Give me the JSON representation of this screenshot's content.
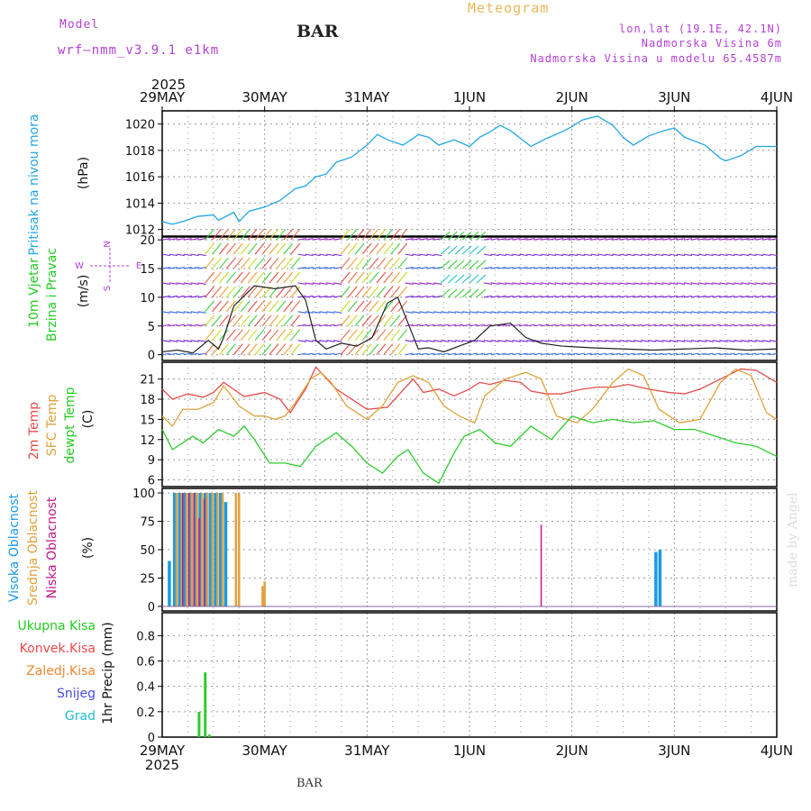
{
  "header": {
    "model_label": "Model",
    "model_name": "wrf—nmm_v3.9.1  e1km",
    "station": "BAR",
    "title": "Meteogram",
    "coords": "lon,lat (19.1E, 42.1N)",
    "elevation": "Nadmorska Visina 6m",
    "model_elevation": "Nadmorska Visina u modelu 65.4587m",
    "watermark": "made by Angel",
    "footer_station": "BAR"
  },
  "colors": {
    "pressure": "#1fa7e6",
    "temp2m": "#e84a4a",
    "sfc": "#e0a23a",
    "dew": "#2ecc2e",
    "high_cloud": "#1a9ae6",
    "mid_cloud": "#e3a13c",
    "low_cloud": "#c4168a",
    "precip_total": "#2ecc2e",
    "grid": "#9a9a9a",
    "header_purple": "#b341d6",
    "title_orange": "#e8b85a"
  },
  "chart_data": [
    {
      "type": "line",
      "panel": "pressure",
      "ylabel": "(hPa)",
      "side_label": "Pritisak na nivou mora",
      "ylim": [
        1011.5,
        1021
      ],
      "yticks": [
        1012,
        1014,
        1016,
        1018,
        1020
      ],
      "x_top_year": "2025",
      "x_date_labels": [
        "29MAY",
        "30MAY",
        "31MAY",
        "1JUN",
        "2JUN",
        "3JUN",
        "4JUN"
      ],
      "x_bottom_year": "2025",
      "series": [
        {
          "x": [
            0,
            0.1,
            0.2,
            0.35,
            0.5,
            0.55,
            0.7,
            0.75,
            0.85,
            1.0,
            1.15,
            1.3,
            1.4,
            1.5,
            1.6,
            1.7,
            1.85,
            2.0,
            2.1,
            2.2,
            2.35,
            2.45,
            2.5,
            2.6,
            2.7,
            2.85,
            3.0,
            3.1,
            3.2,
            3.3,
            3.4,
            3.5,
            3.6,
            3.75,
            3.9,
            4.0,
            4.1,
            4.25,
            4.4,
            4.5,
            4.6,
            4.75,
            4.9,
            5.0,
            5.1,
            5.3,
            5.45,
            5.5,
            5.65,
            5.8,
            5.95,
            6.0
          ],
          "values": [
            1012.6,
            1012.4,
            1012.6,
            1013.0,
            1013.1,
            1012.7,
            1013.3,
            1012.6,
            1013.4,
            1013.7,
            1014.2,
            1015.1,
            1015.3,
            1016.0,
            1016.2,
            1017.1,
            1017.5,
            1018.4,
            1019.2,
            1018.8,
            1018.4,
            1018.9,
            1019.2,
            1019.0,
            1018.4,
            1018.8,
            1018.3,
            1019.0,
            1019.4,
            1019.9,
            1019.5,
            1018.9,
            1018.3,
            1018.9,
            1019.4,
            1019.8,
            1020.3,
            1020.6,
            1019.9,
            1019.0,
            1018.4,
            1019.1,
            1019.5,
            1019.7,
            1019.0,
            1018.4,
            1017.4,
            1017.2,
            1017.6,
            1018.3,
            1018.3,
            1018.3
          ]
        }
      ]
    },
    {
      "type": "line",
      "panel": "wind",
      "ylabel": "(m/s)",
      "side_label_1": "10m Vjetar",
      "side_label_2": "Brzina i Pravac",
      "compass_n": "N",
      "compass_s": "S",
      "compass_w": "W",
      "compass_e": "E",
      "ylim": [
        -1,
        20.5
      ],
      "yticks": [
        0,
        5,
        10,
        15,
        20
      ],
      "series": [
        {
          "name": "speed",
          "x": [
            0,
            0.15,
            0.3,
            0.45,
            0.55,
            0.6,
            0.7,
            0.9,
            1.1,
            1.3,
            1.4,
            1.5,
            1.6,
            1.75,
            1.9,
            2.05,
            2.2,
            2.3,
            2.4,
            2.5,
            2.6,
            2.75,
            2.9,
            3.05,
            3.2,
            3.4,
            3.55,
            3.7,
            3.9,
            4.2,
            4.5,
            4.8,
            5.1,
            5.4,
            5.7,
            6.0
          ],
          "values": [
            0.5,
            0.8,
            0.3,
            2.5,
            1.0,
            3.0,
            8.5,
            12.0,
            11.5,
            12.0,
            9.5,
            2.5,
            1.0,
            2.0,
            1.5,
            3.0,
            9.0,
            10.0,
            5.5,
            1.0,
            1.2,
            0.5,
            1.5,
            2.5,
            5.0,
            5.5,
            3.0,
            2.0,
            1.5,
            1.2,
            1.0,
            0.8,
            1.0,
            1.2,
            0.8,
            1.0
          ]
        }
      ]
    },
    {
      "type": "line",
      "panel": "temperature",
      "ylabel": "(C)",
      "side_label_1": "2m Temp",
      "side_label_2": "SFC Temp",
      "side_label_3": "dewpt Temp",
      "ylim": [
        5,
        23.5
      ],
      "yticks": [
        6,
        9,
        12,
        15,
        18,
        21
      ],
      "series": [
        {
          "name": "2m Temp",
          "x": [
            0,
            0.1,
            0.25,
            0.4,
            0.5,
            0.6,
            0.8,
            1.0,
            1.15,
            1.25,
            1.4,
            1.5,
            1.7,
            1.8,
            2.0,
            2.2,
            2.3,
            2.45,
            2.55,
            2.7,
            2.85,
            3.0,
            3.1,
            3.2,
            3.35,
            3.5,
            3.6,
            3.75,
            3.9,
            4.1,
            4.25,
            4.4,
            4.55,
            4.75,
            4.95,
            5.1,
            5.25,
            5.45,
            5.65,
            5.8,
            6.0
          ],
          "values": [
            19.5,
            18.0,
            18.8,
            18.3,
            19.0,
            20.5,
            18.4,
            19.0,
            18.0,
            16.0,
            19.5,
            22.8,
            19.5,
            18.5,
            16.5,
            16.8,
            18.5,
            21.0,
            19.0,
            19.5,
            18.5,
            19.5,
            20.5,
            20.2,
            20.8,
            20.5,
            19.2,
            18.8,
            18.8,
            19.5,
            19.8,
            19.8,
            20.2,
            19.5,
            19.0,
            18.8,
            19.5,
            21.0,
            22.5,
            22.3,
            20.5
          ]
        },
        {
          "name": "SFC Temp",
          "x": [
            0,
            0.1,
            0.2,
            0.35,
            0.5,
            0.6,
            0.75,
            0.9,
            1.0,
            1.1,
            1.2,
            1.3,
            1.45,
            1.55,
            1.65,
            1.8,
            2.0,
            2.15,
            2.3,
            2.45,
            2.6,
            2.75,
            2.9,
            3.05,
            3.15,
            3.35,
            3.55,
            3.7,
            3.85,
            4.05,
            4.2,
            4.4,
            4.55,
            4.7,
            4.85,
            5.05,
            5.25,
            5.45,
            5.6,
            5.75,
            5.9,
            6.0
          ],
          "values": [
            15.5,
            14.0,
            16.5,
            16.5,
            17.5,
            20.0,
            17.0,
            15.5,
            15.5,
            15.0,
            15.5,
            17.5,
            21.0,
            22.0,
            20.5,
            17.0,
            15.0,
            17.0,
            20.5,
            21.5,
            20.5,
            17.0,
            15.5,
            14.5,
            18.5,
            21.0,
            22.0,
            21.0,
            15.5,
            14.5,
            16.5,
            20.5,
            22.5,
            21.5,
            16.5,
            14.5,
            15.0,
            20.5,
            22.5,
            21.5,
            16.0,
            15.0
          ]
        },
        {
          "name": "dewpt Temp",
          "x": [
            0,
            0.1,
            0.3,
            0.4,
            0.55,
            0.7,
            0.8,
            0.9,
            1.05,
            1.2,
            1.35,
            1.5,
            1.7,
            1.85,
            2.0,
            2.15,
            2.3,
            2.4,
            2.55,
            2.7,
            2.85,
            2.95,
            3.1,
            3.25,
            3.4,
            3.6,
            3.8,
            4.0,
            4.2,
            4.4,
            4.6,
            4.8,
            5.0,
            5.2,
            5.4,
            5.6,
            5.8,
            6.0
          ],
          "values": [
            13.5,
            10.5,
            12.5,
            11.5,
            13.5,
            12.5,
            14.0,
            12.0,
            8.5,
            8.5,
            8.0,
            11.0,
            13.0,
            11.0,
            8.5,
            7.0,
            9.5,
            10.5,
            7.0,
            5.5,
            10.0,
            12.5,
            13.5,
            11.5,
            11.0,
            14.0,
            12.0,
            15.5,
            14.5,
            15.0,
            14.5,
            14.8,
            13.5,
            13.5,
            12.5,
            11.5,
            11.0,
            9.5
          ]
        }
      ]
    },
    {
      "type": "bar",
      "panel": "cloud",
      "ylabel": "(%)",
      "side_label_1": "Visoka Oblacnost",
      "side_label_2": "Srednja Oblacnost",
      "side_label_3": "Niska Oblacnost",
      "ylim": [
        -4,
        104
      ],
      "yticks": [
        0,
        25,
        50,
        75,
        100
      ],
      "series": [
        {
          "name": "Visoka Oblacnost",
          "x": [
            0.07,
            0.12,
            0.17,
            0.22,
            0.27,
            0.32,
            0.37,
            0.42,
            0.47,
            0.52,
            0.57,
            0.62,
            4.82,
            4.86
          ],
          "values": [
            40,
            100,
            100,
            100,
            100,
            100,
            100,
            100,
            100,
            100,
            100,
            92,
            48,
            50
          ]
        },
        {
          "name": "Srednja Oblacnost",
          "x": [
            0.14,
            0.19,
            0.24,
            0.29,
            0.34,
            0.39,
            0.44,
            0.49,
            0.54,
            0.59,
            0.72,
            0.75,
            0.98,
            1.0
          ],
          "values": [
            100,
            100,
            100,
            100,
            100,
            100,
            100,
            100,
            100,
            100,
            100,
            100,
            18,
            22
          ]
        },
        {
          "name": "Niska Oblacnost",
          "x": [
            0.2,
            0.26,
            0.31,
            0.36,
            0.41,
            3.7
          ],
          "values": [
            100,
            100,
            100,
            78,
            95,
            72
          ]
        }
      ]
    },
    {
      "type": "bar",
      "panel": "precip",
      "ylabel": "1hr Precip (mm)",
      "side_label_1": "Ukupna Kisa",
      "side_label_2": "Konvek.Kisa",
      "side_label_3": "Zaledj.Kisa",
      "side_label_4": "Snijeg",
      "side_label_5": "Grad",
      "ylim": [
        0,
        0.98
      ],
      "yticks": [
        0,
        0.2,
        0.4,
        0.6,
        0.8
      ],
      "series": [
        {
          "name": "Ukupna Kisa",
          "x": [
            0.36,
            0.42,
            0.46
          ],
          "values": [
            0.2,
            0.51,
            0.02
          ]
        }
      ]
    }
  ]
}
